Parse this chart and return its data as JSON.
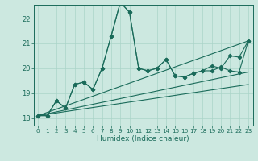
{
  "xlabel": "Humidex (Indice chaleur)",
  "xlim": [
    -0.5,
    23.5
  ],
  "ylim": [
    17.7,
    22.55
  ],
  "yticks": [
    18,
    19,
    20,
    21,
    22
  ],
  "xticks": [
    0,
    1,
    2,
    3,
    4,
    5,
    6,
    7,
    8,
    9,
    10,
    11,
    12,
    13,
    14,
    15,
    16,
    17,
    18,
    19,
    20,
    21,
    22,
    23
  ],
  "bg_color": "#cce8e0",
  "line_color": "#1a6b5a",
  "grid_color": "#aad4c8",
  "series_zigzag1": {
    "x": [
      0,
      1,
      2,
      3,
      4,
      5,
      6,
      7,
      8,
      9,
      10,
      11,
      12,
      13,
      14,
      15,
      16,
      17,
      18,
      19,
      20,
      21,
      22,
      23
    ],
    "y": [
      18.1,
      18.1,
      18.7,
      18.4,
      19.35,
      19.45,
      19.15,
      20.0,
      21.3,
      22.65,
      22.25,
      20.0,
      19.9,
      20.0,
      20.35,
      19.7,
      19.65,
      19.8,
      19.9,
      19.9,
      20.05,
      19.9,
      19.85,
      21.1
    ]
  },
  "series_zigzag2": {
    "x": [
      0,
      1,
      2,
      3,
      4,
      5,
      6,
      7,
      8,
      9,
      10,
      11,
      12,
      13,
      14,
      15,
      16,
      17,
      18,
      19,
      20,
      21,
      22,
      23
    ],
    "y": [
      18.1,
      18.1,
      18.7,
      18.4,
      19.35,
      19.45,
      19.15,
      20.0,
      21.3,
      22.65,
      22.25,
      20.0,
      19.9,
      20.0,
      20.35,
      19.7,
      19.65,
      19.8,
      19.9,
      20.1,
      20.0,
      20.5,
      20.45,
      21.1
    ]
  },
  "trend_lines": [
    {
      "x": [
        0,
        23
      ],
      "y": [
        18.1,
        21.1
      ]
    },
    {
      "x": [
        0,
        23
      ],
      "y": [
        18.1,
        19.35
      ]
    },
    {
      "x": [
        0,
        23
      ],
      "y": [
        18.1,
        19.85
      ]
    }
  ]
}
